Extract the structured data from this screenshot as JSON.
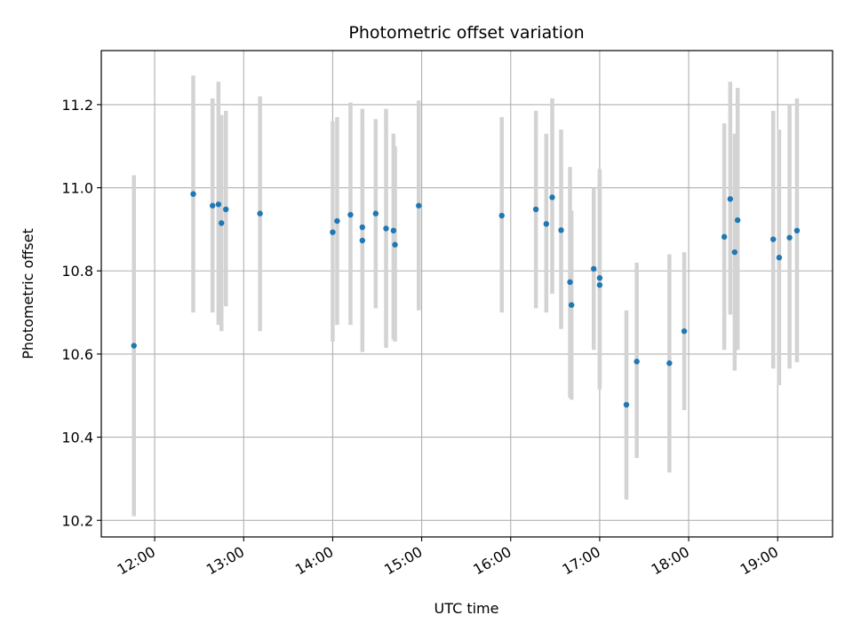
{
  "chart_data": {
    "type": "scatter",
    "title": "Photometric offset variation",
    "xlabel": "UTC time",
    "ylabel": "Photometric offset",
    "x_axis_type": "time",
    "xlim": [
      "11:24",
      "19:37"
    ],
    "ylim": [
      10.16,
      11.33
    ],
    "x_ticks": [
      "12:00",
      "13:00",
      "14:00",
      "15:00",
      "16:00",
      "17:00",
      "18:00",
      "19:00"
    ],
    "y_ticks": [
      10.2,
      10.4,
      10.6,
      10.8,
      11.0,
      11.2
    ],
    "y_tick_labels": [
      "10.2",
      "10.4",
      "10.6",
      "10.8",
      "11.0",
      "11.2"
    ],
    "grid": true,
    "colors": {
      "point": "#1f77b4",
      "errorbar": "#d3d3d3",
      "grid": "#b0b0b0"
    },
    "series": [
      {
        "points": [
          {
            "x": "11:46",
            "y": 10.62,
            "err_low": 10.21,
            "err_high": 11.03
          },
          {
            "x": "12:26",
            "y": 10.985,
            "err_low": 10.7,
            "err_high": 11.27
          },
          {
            "x": "12:39",
            "y": 10.957,
            "err_low": 10.7,
            "err_high": 11.215
          },
          {
            "x": "12:43",
            "y": 10.96,
            "err_low": 10.67,
            "err_high": 11.255
          },
          {
            "x": "12:45",
            "y": 10.915,
            "err_low": 10.655,
            "err_high": 11.175
          },
          {
            "x": "12:48",
            "y": 10.948,
            "err_low": 10.715,
            "err_high": 11.185
          },
          {
            "x": "13:11",
            "y": 10.938,
            "err_low": 10.655,
            "err_high": 11.22
          },
          {
            "x": "14:00",
            "y": 10.893,
            "err_low": 10.63,
            "err_high": 11.16
          },
          {
            "x": "14:03",
            "y": 10.92,
            "err_low": 10.67,
            "err_high": 11.17
          },
          {
            "x": "14:12",
            "y": 10.935,
            "err_low": 10.67,
            "err_high": 11.205
          },
          {
            "x": "14:20",
            "y": 10.905,
            "err_low": 10.635,
            "err_high": 11.19
          },
          {
            "x": "14:20",
            "y": 10.873,
            "err_low": 10.605,
            "err_high": 11.145
          },
          {
            "x": "14:29",
            "y": 10.938,
            "err_low": 10.71,
            "err_high": 11.165
          },
          {
            "x": "14:36",
            "y": 10.902,
            "err_low": 10.615,
            "err_high": 11.19
          },
          {
            "x": "14:41",
            "y": 10.897,
            "err_low": 10.635,
            "err_high": 11.13
          },
          {
            "x": "14:42",
            "y": 10.863,
            "err_low": 10.63,
            "err_high": 11.1
          },
          {
            "x": "14:58",
            "y": 10.957,
            "err_low": 10.705,
            "err_high": 11.21
          },
          {
            "x": "15:54",
            "y": 10.933,
            "err_low": 10.7,
            "err_high": 11.17
          },
          {
            "x": "16:17",
            "y": 10.948,
            "err_low": 10.71,
            "err_high": 11.185
          },
          {
            "x": "16:24",
            "y": 10.913,
            "err_low": 10.7,
            "err_high": 11.13
          },
          {
            "x": "16:28",
            "y": 10.977,
            "err_low": 10.745,
            "err_high": 11.215
          },
          {
            "x": "16:34",
            "y": 10.898,
            "err_low": 10.66,
            "err_high": 11.14
          },
          {
            "x": "16:40",
            "y": 10.773,
            "err_low": 10.495,
            "err_high": 11.05
          },
          {
            "x": "16:41",
            "y": 10.718,
            "err_low": 10.49,
            "err_high": 10.945
          },
          {
            "x": "16:56",
            "y": 10.805,
            "err_low": 10.61,
            "err_high": 11.0
          },
          {
            "x": "17:00",
            "y": 10.783,
            "err_low": 10.525,
            "err_high": 11.045
          },
          {
            "x": "17:00",
            "y": 10.766,
            "err_low": 10.515,
            "err_high": 11.02
          },
          {
            "x": "17:18",
            "y": 10.478,
            "err_low": 10.25,
            "err_high": 10.705
          },
          {
            "x": "17:25",
            "y": 10.582,
            "err_low": 10.35,
            "err_high": 10.82
          },
          {
            "x": "17:47",
            "y": 10.578,
            "err_low": 10.315,
            "err_high": 10.84
          },
          {
            "x": "17:57",
            "y": 10.655,
            "err_low": 10.465,
            "err_high": 10.845
          },
          {
            "x": "18:24",
            "y": 10.882,
            "err_low": 10.61,
            "err_high": 11.155
          },
          {
            "x": "18:28",
            "y": 10.973,
            "err_low": 10.695,
            "err_high": 11.255
          },
          {
            "x": "18:31",
            "y": 10.845,
            "err_low": 10.56,
            "err_high": 11.13
          },
          {
            "x": "18:33",
            "y": 10.922,
            "err_low": 10.61,
            "err_high": 11.24
          },
          {
            "x": "18:57",
            "y": 10.876,
            "err_low": 10.565,
            "err_high": 11.185
          },
          {
            "x": "19:01",
            "y": 10.832,
            "err_low": 10.525,
            "err_high": 11.14
          },
          {
            "x": "19:08",
            "y": 10.88,
            "err_low": 10.565,
            "err_high": 11.2
          },
          {
            "x": "19:13",
            "y": 10.897,
            "err_low": 10.58,
            "err_high": 11.215
          }
        ]
      }
    ]
  }
}
